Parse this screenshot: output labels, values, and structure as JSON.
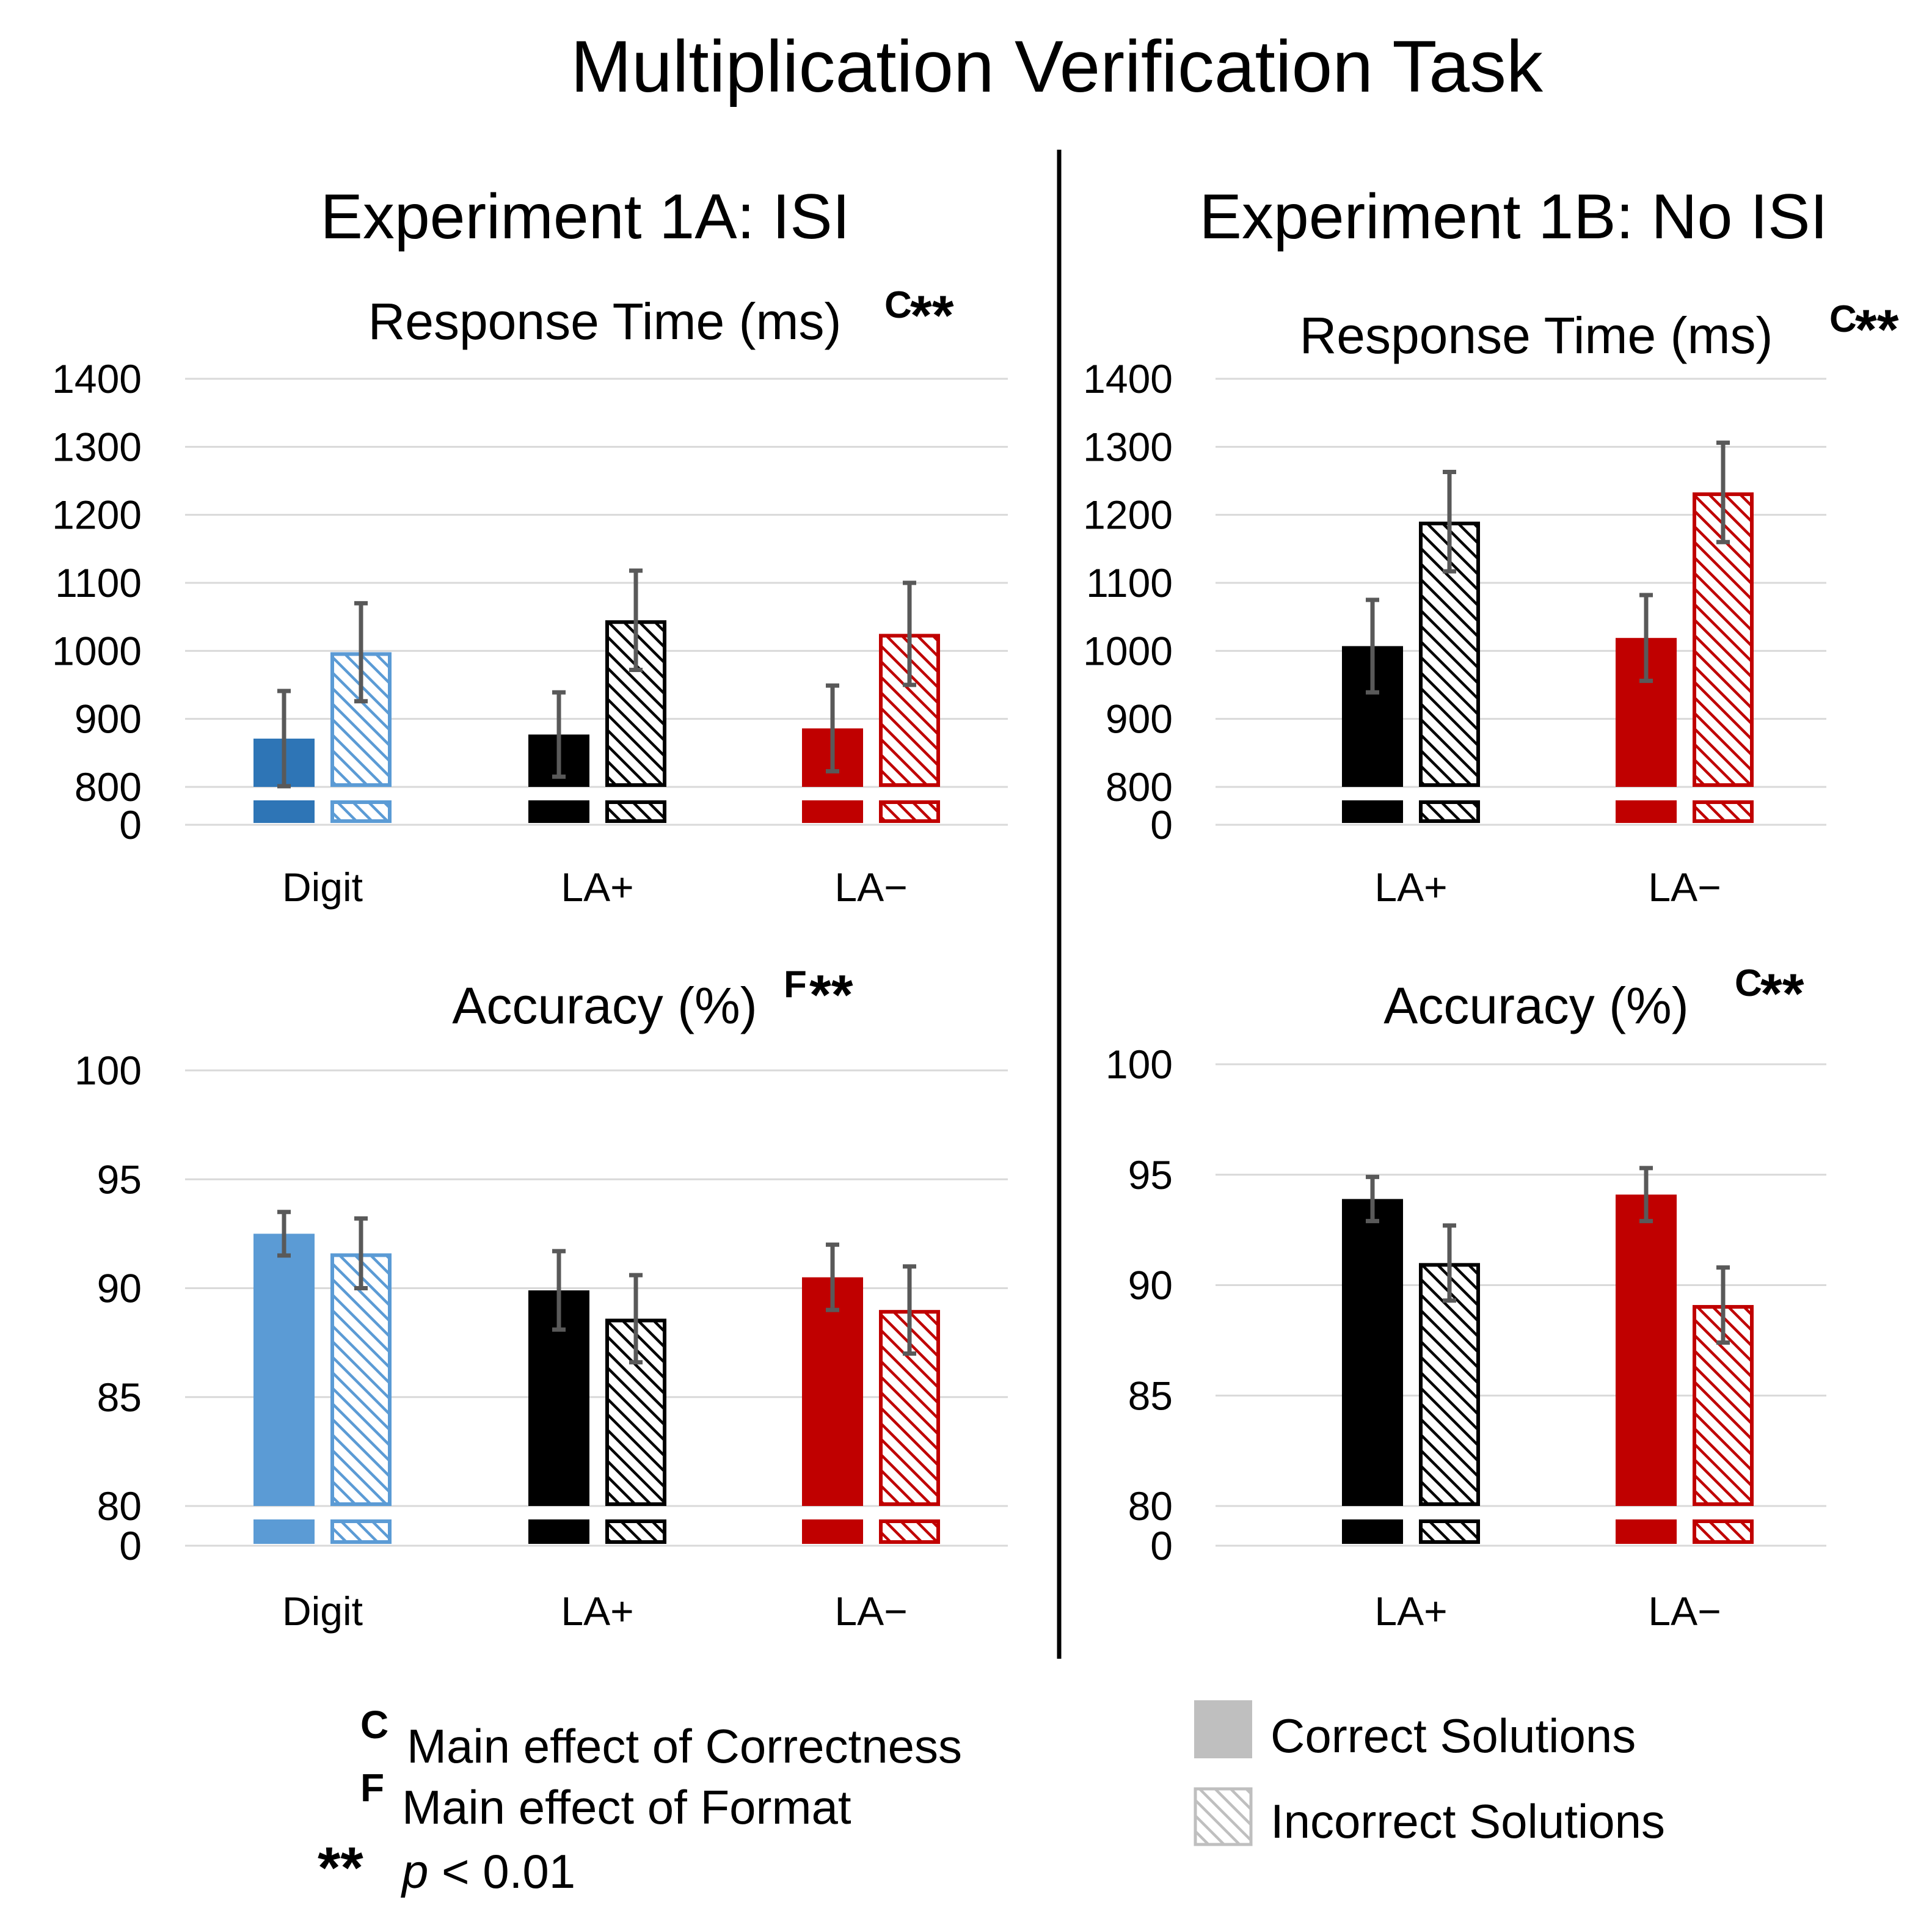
{
  "title": "Multiplication Verification Task",
  "colors": {
    "digit": "#2e75b6",
    "digit_light": "#5b9bd5",
    "la_plus": "#000000",
    "la_minus": "#c00000",
    "gray": "#bfbfbf",
    "error_bar": "#595959"
  },
  "panels": [
    {
      "title": "Experiment 1A: ISI"
    },
    {
      "title": "Experiment 1B: No ISI"
    }
  ],
  "chart_data": [
    {
      "type": "bar",
      "panel": "Experiment 1A: ISI",
      "title": "Response Time (ms)",
      "significance": "C**",
      "sig_letter": "C",
      "sig_stars": "**",
      "categories": [
        "Digit",
        "LA+",
        "LA−"
      ],
      "y_ticks": [
        "0",
        "800",
        "900",
        "1000",
        "1100",
        "1200",
        "1300",
        "1400"
      ],
      "ylim": [
        800,
        1400
      ],
      "axis_break": true,
      "series": [
        {
          "name": "Correct Solutions",
          "values": [
            871,
            877,
            886
          ],
          "errors": [
            70,
            62,
            63
          ]
        },
        {
          "name": "Incorrect Solutions",
          "values": [
            998,
            1045,
            1025
          ],
          "errors": [
            72,
            73,
            75
          ]
        }
      ]
    },
    {
      "type": "bar",
      "panel": "Experiment 1B: No ISI",
      "title": "Response Time (ms)",
      "significance": "C**",
      "sig_letter": "C",
      "sig_stars": "**",
      "categories": [
        "LA+",
        "LA−"
      ],
      "y_ticks": [
        "0",
        "800",
        "900",
        "1000",
        "1100",
        "1200",
        "1300",
        "1400"
      ],
      "ylim": [
        800,
        1400
      ],
      "axis_break": true,
      "series": [
        {
          "name": "Correct Solutions",
          "values": [
            1007,
            1019
          ],
          "errors": [
            68,
            63
          ]
        },
        {
          "name": "Incorrect Solutions",
          "values": [
            1190,
            1233
          ],
          "errors": [
            73,
            73
          ]
        }
      ]
    },
    {
      "type": "bar",
      "panel": "Experiment 1A: ISI",
      "title": "Accuracy (%)",
      "significance": "F**",
      "sig_letter": "F",
      "sig_stars": "**",
      "categories": [
        "Digit",
        "LA+",
        "LA−"
      ],
      "y_ticks": [
        "0",
        "80",
        "85",
        "90",
        "95",
        "100"
      ],
      "ylim": [
        80,
        100
      ],
      "axis_break": true,
      "series": [
        {
          "name": "Correct Solutions",
          "values": [
            92.5,
            89.9,
            90.5
          ],
          "errors": [
            1.0,
            1.8,
            1.5
          ]
        },
        {
          "name": "Incorrect Solutions",
          "values": [
            91.6,
            88.6,
            89.0
          ],
          "errors": [
            1.6,
            2.0,
            2.0
          ]
        }
      ]
    },
    {
      "type": "bar",
      "panel": "Experiment 1B: No ISI",
      "title": "Accuracy (%)",
      "significance": "C**",
      "sig_letter": "C",
      "sig_stars": "**",
      "categories": [
        "LA+",
        "LA−"
      ],
      "y_ticks": [
        "0",
        "80",
        "85",
        "90",
        "95",
        "100"
      ],
      "ylim": [
        80,
        100
      ],
      "axis_break": true,
      "series": [
        {
          "name": "Correct Solutions",
          "values": [
            93.9,
            94.1
          ],
          "errors": [
            1.0,
            1.2
          ]
        },
        {
          "name": "Incorrect Solutions",
          "values": [
            91.0,
            89.1
          ],
          "errors": [
            1.7,
            1.7
          ]
        }
      ]
    }
  ],
  "footnotes": [
    {
      "symbol": "C",
      "text": "Main effect of Correctness"
    },
    {
      "symbol": "F",
      "text": "Main effect of Format"
    },
    {
      "symbol": "**",
      "text_italic": "p",
      "text": " < 0.01"
    }
  ],
  "legend": [
    {
      "label": "Correct Solutions",
      "pattern": "solid"
    },
    {
      "label": "Incorrect Solutions",
      "pattern": "hatched"
    }
  ]
}
